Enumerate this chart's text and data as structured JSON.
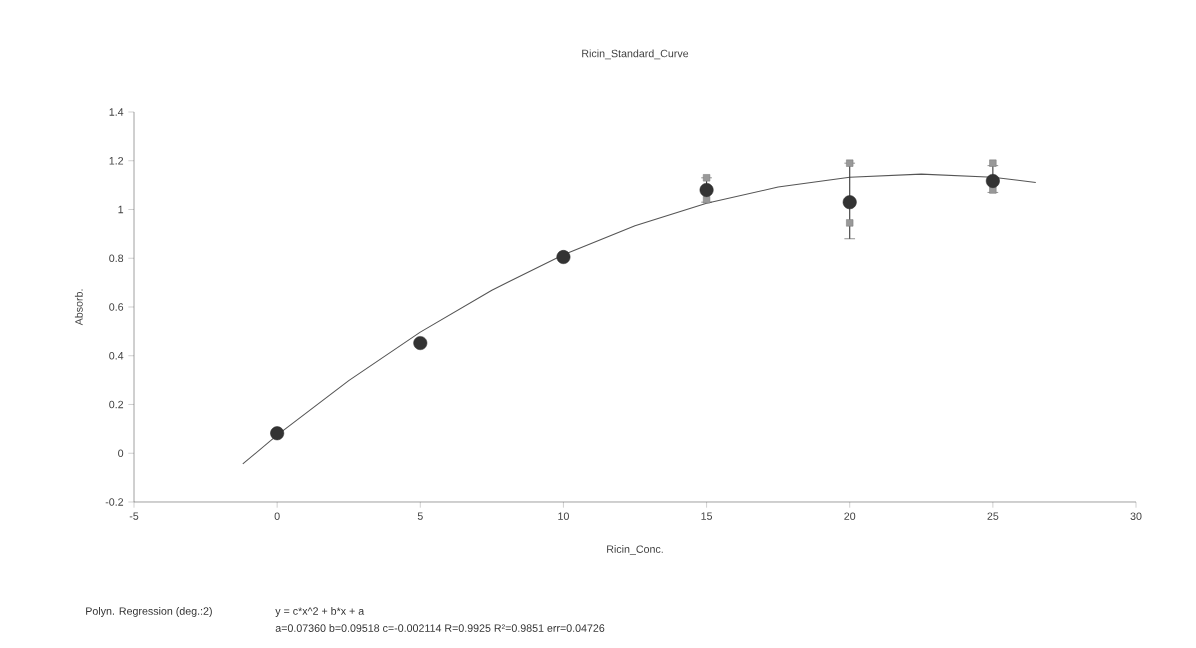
{
  "chart_data": {
    "type": "scatter",
    "title": "Ricin_Standard_Curve",
    "xlabel": "Ricin_Conc.",
    "ylabel": "Absorb.",
    "xlim": [
      -5,
      30
    ],
    "ylim": [
      -0.2,
      1.4
    ],
    "xticks": [
      -5,
      0,
      5,
      10,
      15,
      20,
      25,
      30
    ],
    "yticks": [
      -0.2,
      0,
      0.2,
      0.4,
      0.6,
      0.8,
      1,
      1.2,
      1.4
    ],
    "series": [
      {
        "type": "line",
        "color": "#555555",
        "marker": "none",
        "x": [
          -1.2,
          0,
          2.5,
          5,
          7.5,
          10,
          12.5,
          15,
          17.5,
          20,
          22.5,
          25,
          26.5
        ],
        "values": [
          -0.044,
          0.074,
          0.298,
          0.497,
          0.669,
          0.814,
          0.933,
          1.026,
          1.092,
          1.132,
          1.145,
          1.132,
          1.111
        ]
      },
      {
        "color": "#999999",
        "marker": "square",
        "x": [
          15,
          15,
          20,
          20,
          25,
          25
        ],
        "values": [
          1.13,
          1.04,
          1.19,
          0.945,
          1.19,
          1.08
        ]
      },
      {
        "color": "#333333",
        "marker": "circle",
        "x": [
          0,
          5,
          10,
          15,
          20,
          25
        ],
        "values": [
          0.082,
          0.452,
          0.805,
          1.08,
          1.03,
          1.117
        ],
        "errors": [
          null,
          null,
          null,
          [
            1.03,
            1.13
          ],
          [
            0.88,
            1.19
          ],
          [
            1.07,
            1.18
          ]
        ]
      }
    ],
    "annotations": [
      "Polyn. Regression (deg.:2)",
      "y = c*x^2 + b*x + a",
      "a=0.07360  b=0.09518  c=-0.002114  R=0.9925  R²=0.9851  err=0.04726"
    ]
  }
}
